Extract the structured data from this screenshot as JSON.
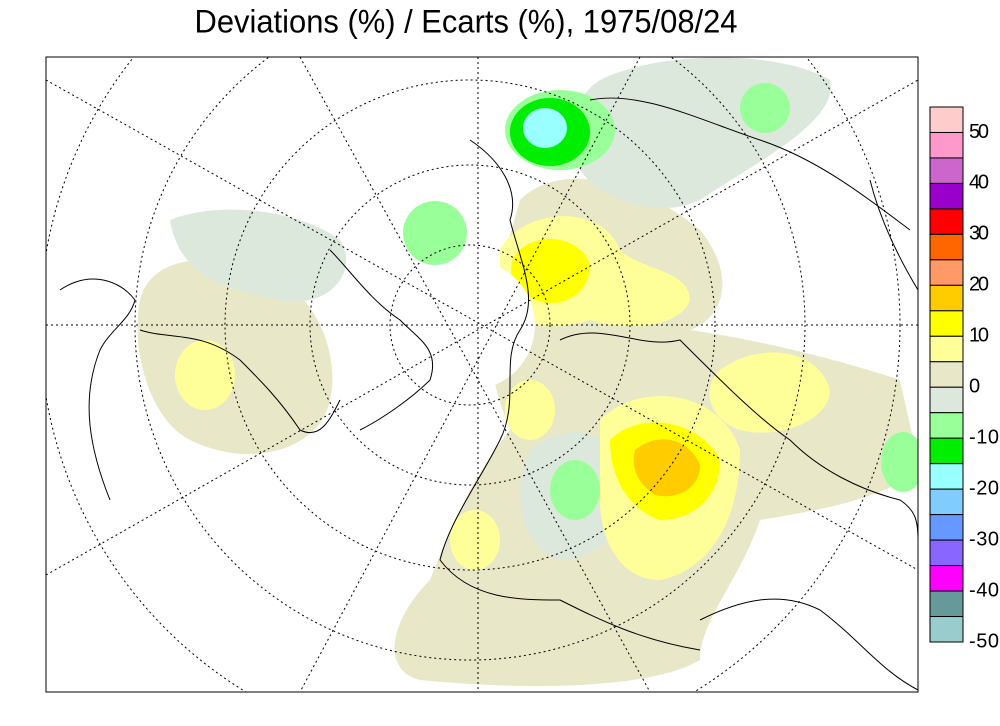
{
  "title": "Deviations (%) / Ecarts (%), 1975/08/24",
  "legend": {
    "colors": [
      "#ffcccc",
      "#ff99cc",
      "#cc66cc",
      "#9900cc",
      "#ff0000",
      "#ff6600",
      "#ff9966",
      "#ffcc00",
      "#ffff00",
      "#ffff99",
      "#e8e8c8",
      "#dde8dd",
      "#99ff99",
      "#00ee00",
      "#99ffff",
      "#80ccff",
      "#6699ff",
      "#8866ff",
      "#ff00ff",
      "#669999",
      "#99cccc"
    ],
    "ticks": [
      50,
      40,
      30,
      20,
      10,
      0,
      -10,
      -20,
      -30,
      -40,
      -50
    ]
  }
}
